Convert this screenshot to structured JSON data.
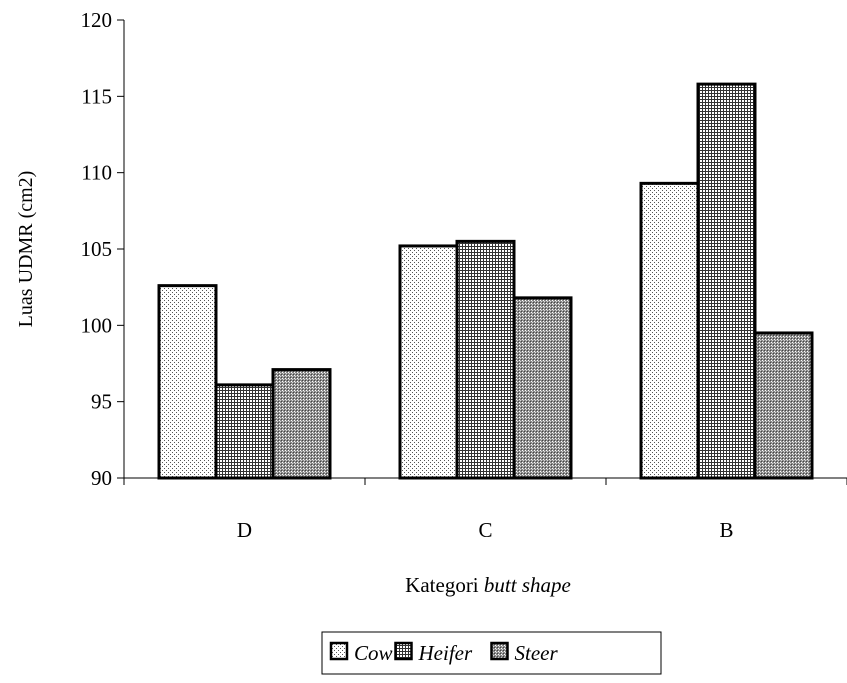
{
  "chart_data": {
    "type": "bar",
    "title": "",
    "xlabel": {
      "prefix": "Kategori ",
      "italic": "butt shape"
    },
    "ylabel": "Luas UDMR (cm2)",
    "ylim": [
      90,
      120
    ],
    "yticks": [
      90,
      95,
      100,
      105,
      110,
      115,
      120
    ],
    "categories": [
      "D",
      "C",
      "B"
    ],
    "series": [
      {
        "name": "Cow",
        "pattern": "dots",
        "values": [
          102.6,
          105.2,
          109.3
        ]
      },
      {
        "name": "Heifer",
        "pattern": "grid",
        "values": [
          96.1,
          105.5,
          115.8
        ]
      },
      {
        "name": "Steer",
        "pattern": "dense",
        "values": [
          97.1,
          101.8,
          99.5
        ]
      }
    ],
    "legend_position": "bottom",
    "grid": false
  }
}
